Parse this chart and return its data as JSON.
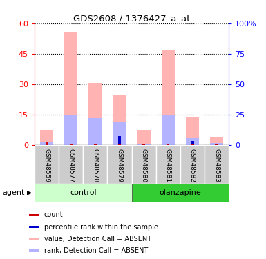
{
  "title": "GDS2608 / 1376427_a_at",
  "samples": [
    "GSM48559",
    "GSM48577",
    "GSM48578",
    "GSM48579",
    "GSM48580",
    "GSM48581",
    "GSM48582",
    "GSM48583"
  ],
  "value_absent": [
    7.5,
    56.0,
    30.5,
    25.0,
    7.5,
    46.5,
    13.5,
    4.0
  ],
  "rank_absent_pct": [
    3.0,
    25.0,
    22.0,
    18.5,
    0.8,
    24.5,
    5.5,
    1.5
  ],
  "count_val": [
    1.5,
    0.3,
    0.3,
    0.3,
    0.3,
    0.3,
    0.3,
    0.3
  ],
  "rank_pct": [
    2.0,
    0.5,
    0.5,
    7.5,
    1.2,
    0.5,
    3.2,
    1.0
  ],
  "ylim": [
    0,
    60
  ],
  "y2lim": [
    0,
    100
  ],
  "yticks": [
    0,
    15,
    30,
    45,
    60
  ],
  "y2ticks": [
    0,
    25,
    50,
    75,
    100
  ],
  "color_value_absent": "#ffb3b3",
  "color_rank_absent": "#b3b3ff",
  "color_count": "#cc0000",
  "color_rank": "#0000cc",
  "control_bg_light": "#ccffcc",
  "olanzapine_bg": "#33cc33",
  "sample_bg": "#cccccc",
  "legend_items": [
    {
      "label": "count",
      "color": "#cc0000"
    },
    {
      "label": "percentile rank within the sample",
      "color": "#0000cc"
    },
    {
      "label": "value, Detection Call = ABSENT",
      "color": "#ffb3b3"
    },
    {
      "label": "rank, Detection Call = ABSENT",
      "color": "#b3b3ff"
    }
  ]
}
